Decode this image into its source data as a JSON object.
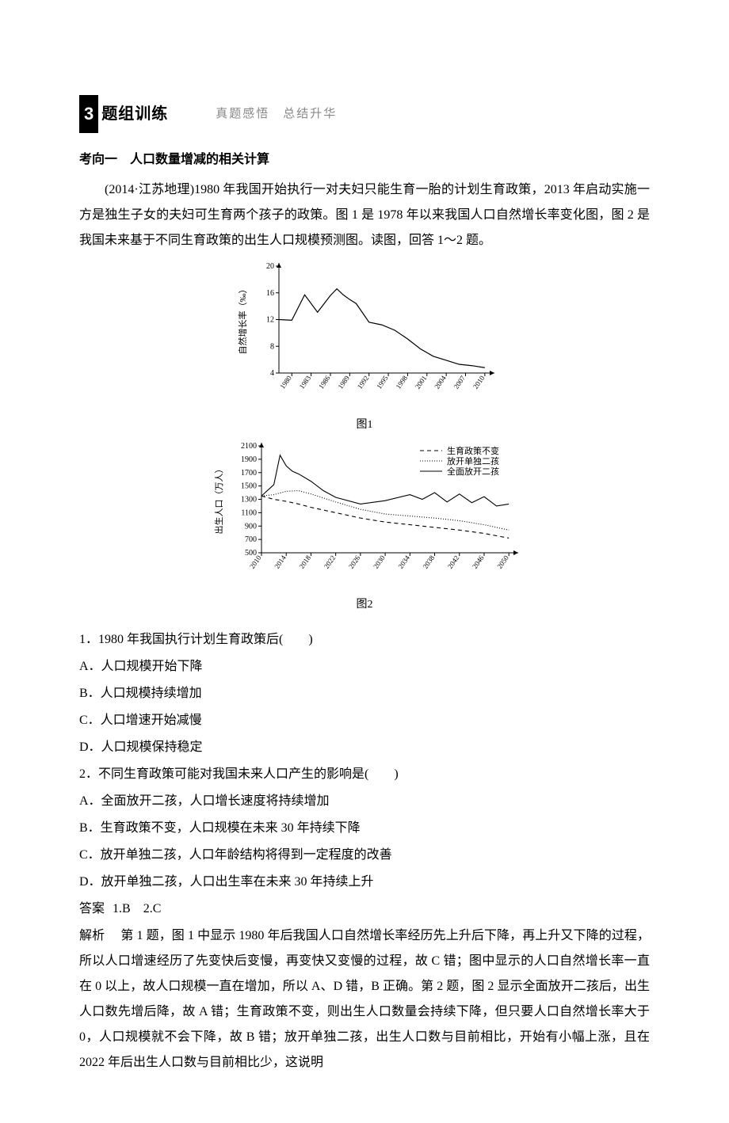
{
  "section": {
    "badge": "3",
    "title": "题组训练",
    "subtitle": "真题感悟　总结升华"
  },
  "topic": {
    "title": "考向一　人口数量增减的相关计算",
    "intro": "(2014·江苏地理)1980 年我国开始执行一对夫妇只能生育一胎的计划生育政策，2013 年启动实施一方是独生子女的夫妇可生育两个孩子的政策。图 1 是 1978 年以来我国人口自然增长率变化图，图 2 是我国未来基于不同生育政策的出生人口规模预测图。读图，回答 1～2 题。"
  },
  "fig1": {
    "type": "line",
    "caption": "图1",
    "xlabel": "",
    "ylabel": "自然增长率（‰）",
    "xticks": [
      "1980",
      "1983",
      "1986",
      "1989",
      "1992",
      "1995",
      "1998",
      "2001",
      "2004",
      "2007",
      "2010"
    ],
    "yticks": [
      4,
      8,
      12,
      16,
      20
    ],
    "ylim": [
      4,
      20
    ],
    "data": {
      "years": [
        1978,
        1980,
        1982,
        1984,
        1986,
        1987,
        1988,
        1989,
        1990,
        1992,
        1994,
        1996,
        1998,
        2000,
        2002,
        2004,
        2006,
        2008,
        2010
      ],
      "values": [
        12.0,
        11.9,
        15.7,
        13.1,
        15.6,
        16.6,
        15.7,
        15.0,
        14.4,
        11.6,
        11.2,
        10.4,
        9.1,
        7.6,
        6.5,
        5.9,
        5.3,
        5.1,
        4.8
      ]
    },
    "line_color": "#000000",
    "line_width": 1.2,
    "axis_color": "#000000"
  },
  "fig2": {
    "type": "line",
    "caption": "图2",
    "xlabel": "",
    "ylabel": "出生人口（万人）",
    "xticks": [
      "2010",
      "2014",
      "2018",
      "2022",
      "2026",
      "2030",
      "2034",
      "2038",
      "2042",
      "2046",
      "2050"
    ],
    "yticks": [
      500,
      700,
      900,
      1100,
      1300,
      1500,
      1700,
      1900,
      2100
    ],
    "ylim": [
      500,
      2100
    ],
    "legend": [
      {
        "label": "生育政策不变",
        "dash": "5,4",
        "color": "#000000"
      },
      {
        "label": "放开单独二孩",
        "dash": "1,2",
        "color": "#000000"
      },
      {
        "label": "全面放开二孩",
        "dash": "",
        "color": "#000000"
      }
    ],
    "series": {
      "unchanged": {
        "years": [
          2010,
          2012,
          2014,
          2016,
          2018,
          2022,
          2026,
          2030,
          2034,
          2038,
          2042,
          2046,
          2050
        ],
        "values": [
          1350,
          1300,
          1270,
          1230,
          1180,
          1100,
          1020,
          960,
          920,
          880,
          840,
          790,
          720
        ]
      },
      "selective": {
        "years": [
          2010,
          2012,
          2014,
          2016,
          2018,
          2022,
          2026,
          2030,
          2034,
          2038,
          2042,
          2046,
          2050
        ],
        "values": [
          1350,
          1370,
          1420,
          1430,
          1380,
          1260,
          1150,
          1080,
          1050,
          1020,
          980,
          920,
          840
        ]
      },
      "full": {
        "years": [
          2010,
          2012,
          2013,
          2014,
          2015,
          2016,
          2018,
          2020,
          2022,
          2026,
          2030,
          2034,
          2036,
          2038,
          2040,
          2042,
          2044,
          2046,
          2048,
          2050
        ],
        "values": [
          1350,
          1520,
          1960,
          1800,
          1720,
          1680,
          1570,
          1430,
          1330,
          1230,
          1280,
          1370,
          1300,
          1400,
          1260,
          1380,
          1250,
          1340,
          1200,
          1230
        ]
      }
    },
    "axis_color": "#000000",
    "line_width": 1.1
  },
  "questions": {
    "q1": {
      "stem": "1．1980 年我国执行计划生育政策后(　　)",
      "A": "A．人口规模开始下降",
      "B": "B．人口规模持续增加",
      "C": "C．人口增速开始减慢",
      "D": "D．人口规模保持稳定"
    },
    "q2": {
      "stem": "2．不同生育政策可能对我国未来人口产生的影响是(　　)",
      "A": "A．全面放开二孩，人口增长速度将持续增加",
      "B": "B．生育政策不变，人口规模在未来 30 年持续下降",
      "C": "C．放开单独二孩，人口年龄结构将得到一定程度的改善",
      "D": "D．放开单独二孩，人口出生率在未来 30 年持续上升"
    }
  },
  "answer": {
    "label": "答案",
    "text": "1.B　2.C"
  },
  "explanation": {
    "label": "解析",
    "text": "第 1 题，图 1 中显示 1980 年后我国人口自然增长率经历先上升后下降，再上升又下降的过程，所以人口增速经历了先变快后变慢，再变快又变慢的过程，故 C 错；图中显示的人口自然增长率一直在 0 以上，故人口规模一直在增加，所以 A、D 错，B 正确。第 2 题，图 2 显示全面放开二孩后，出生人口数先增后降，故 A 错；生育政策不变，则出生人口数量会持续下降，但只要人口自然增长率大于 0，人口规模就不会下降，故 B 错；放开单独二孩，出生人口数与目前相比，开始有小幅上涨，且在 2022 年后出生人口数与目前相比少，这说明"
  }
}
